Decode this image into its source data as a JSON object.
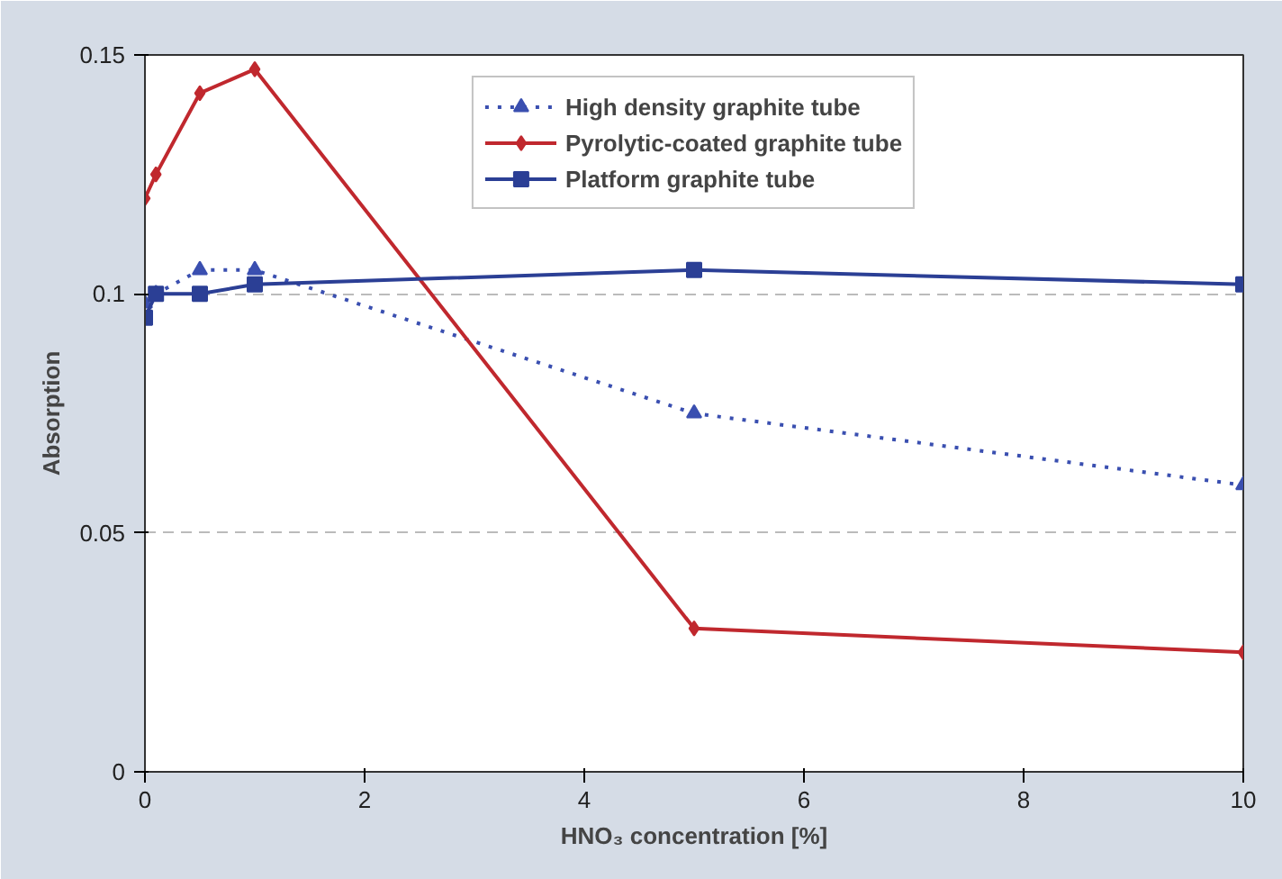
{
  "chart_data": {
    "type": "line",
    "xlabel": "HNO₃ concentration [%]",
    "ylabel": "Absorption",
    "x": [
      0,
      0.1,
      0.5,
      1,
      5,
      10
    ],
    "series": [
      {
        "name": "High density graphite tube",
        "color": "#3a4fb0",
        "line_style": "dotted",
        "marker": "triangle",
        "values": [
          0.098,
          0.1,
          0.105,
          0.105,
          0.075,
          0.06
        ]
      },
      {
        "name": "Pyrolytic-coated graphite tube",
        "color": "#c0282e",
        "line_style": "solid",
        "marker": "diamond",
        "values": [
          0.12,
          0.125,
          0.142,
          0.147,
          0.03,
          0.025
        ]
      },
      {
        "name": "Platform graphite tube",
        "color": "#2b3f95",
        "line_style": "solid",
        "marker": "square",
        "values": [
          0.095,
          0.1,
          0.1,
          0.102,
          0.105,
          0.102
        ]
      }
    ],
    "xlim": [
      0,
      10
    ],
    "xticks": [
      0,
      2,
      4,
      6,
      8,
      10
    ],
    "ylim": [
      0,
      0.15
    ],
    "yticks": [
      0,
      0.05,
      0.1,
      0.15
    ],
    "grid": "y",
    "legend": "top"
  }
}
